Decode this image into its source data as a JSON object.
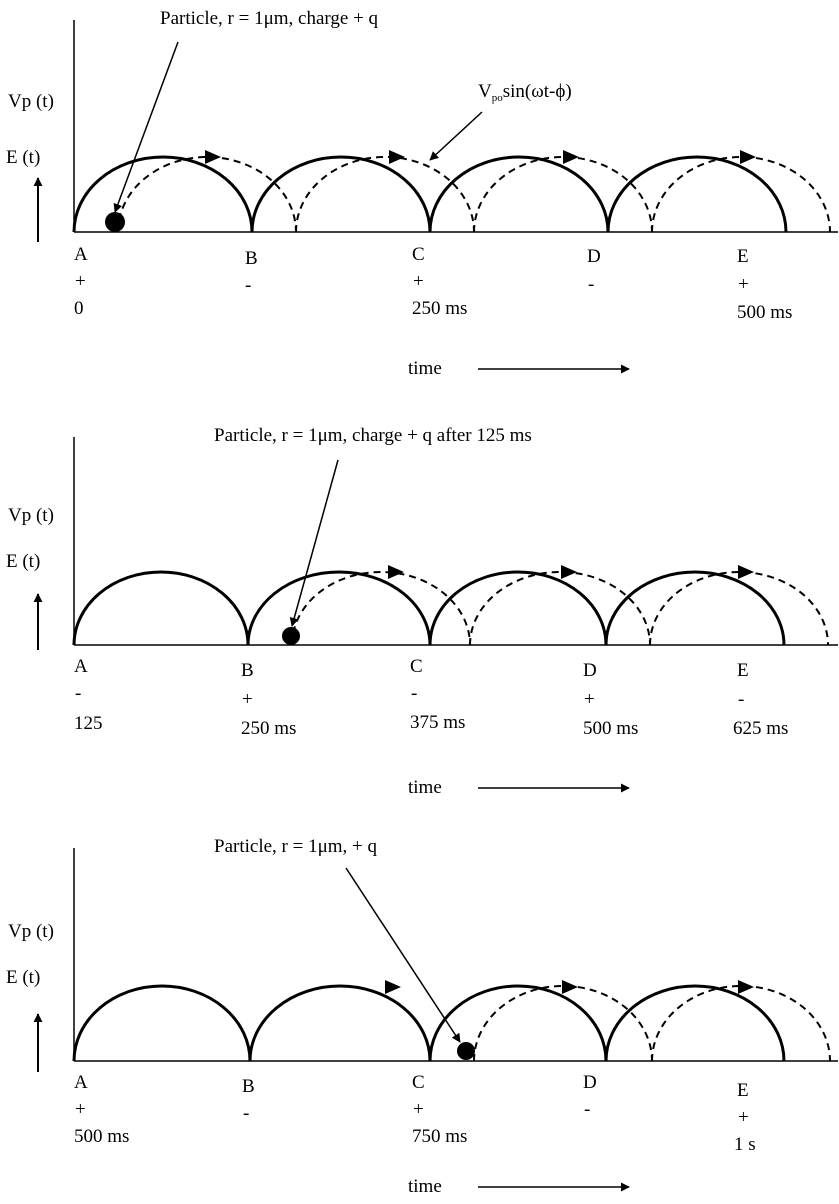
{
  "panels": [
    {
      "particle_label": "Particle, r = 1μm, charge + q",
      "waveform_label": {
        "main": "V",
        "sub": "po",
        "rest": "sin(ωt-ϕ)"
      },
      "y_labels": {
        "vp": "Vp (t)",
        "e": "E (t)"
      },
      "points": [
        {
          "letter": "A",
          "sign": "+",
          "time": "0"
        },
        {
          "letter": "B",
          "sign": "-",
          "time": ""
        },
        {
          "letter": "C",
          "sign": "+",
          "time": "250 ms"
        },
        {
          "letter": "D",
          "sign": "-",
          "time": ""
        },
        {
          "letter": "E",
          "sign": "+",
          "time": "500 ms"
        }
      ],
      "time_label": "time"
    },
    {
      "particle_label": "Particle, r = 1μm, charge + q after 125 ms",
      "y_labels": {
        "vp": "Vp (t)",
        "e": "E (t)"
      },
      "points": [
        {
          "letter": "A",
          "sign": "-",
          "time": "125"
        },
        {
          "letter": "B",
          "sign": "+",
          "time": "250 ms"
        },
        {
          "letter": "C",
          "sign": "-",
          "time": "375 ms"
        },
        {
          "letter": "D",
          "sign": "+",
          "time": "500 ms"
        },
        {
          "letter": "E",
          "sign": "-",
          "time": "625 ms"
        }
      ],
      "time_label": "time"
    },
    {
      "particle_label": "Particle, r = 1μm, + q",
      "y_labels": {
        "vp": "Vp (t)",
        "e": "E (t)"
      },
      "points": [
        {
          "letter": "A",
          "sign": "+",
          "time": "500 ms"
        },
        {
          "letter": "B",
          "sign": "-",
          "time": ""
        },
        {
          "letter": "C",
          "sign": "+",
          "time": "750 ms"
        },
        {
          "letter": "D",
          "sign": "-",
          "time": ""
        },
        {
          "letter": "E",
          "sign": "+",
          "time": "1 s"
        }
      ],
      "time_label": "time"
    }
  ]
}
